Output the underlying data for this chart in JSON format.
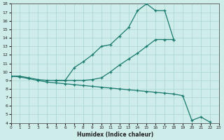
{
  "xlabel": "Humidex (Indice chaleur)",
  "bg_color": "#ceecea",
  "grid_color": "#aed8d4",
  "line_color": "#1a7a6e",
  "xlim": [
    0,
    23
  ],
  "ylim": [
    4,
    18
  ],
  "xticks": [
    0,
    1,
    2,
    3,
    4,
    5,
    6,
    7,
    8,
    9,
    10,
    11,
    12,
    13,
    14,
    15,
    16,
    17,
    18,
    19,
    20,
    21,
    22,
    23
  ],
  "yticks": [
    4,
    5,
    6,
    7,
    8,
    9,
    10,
    11,
    12,
    13,
    14,
    15,
    16,
    17,
    18
  ],
  "line1_x": [
    0,
    1,
    2,
    3,
    4,
    5,
    6,
    7,
    8,
    9,
    10,
    11,
    12,
    13,
    14,
    15,
    16,
    17,
    18
  ],
  "line1_y": [
    9.5,
    9.5,
    9.3,
    9.1,
    9.0,
    9.0,
    9.0,
    10.5,
    11.2,
    12.0,
    13.0,
    13.2,
    14.2,
    15.2,
    17.2,
    18.0,
    17.2,
    17.2,
    13.8
  ],
  "line2_x": [
    0,
    1,
    2,
    3,
    4,
    5,
    6,
    7,
    8,
    9,
    10,
    11,
    12,
    13,
    14,
    15,
    16,
    17,
    18,
    19,
    20,
    21,
    22
  ],
  "line2_y": [
    9.5,
    9.4,
    9.2,
    9.0,
    8.8,
    8.7,
    8.6,
    8.5,
    8.4,
    8.3,
    8.2,
    8.1,
    8.0,
    7.9,
    7.8,
    7.7,
    7.6,
    7.5,
    7.4,
    7.2,
    4.3,
    4.7,
    4.1
  ],
  "line3_x": [
    5,
    6,
    7,
    8,
    9,
    10,
    11,
    12,
    13,
    14,
    15,
    16,
    17,
    18
  ],
  "line3_y": [
    9.0,
    9.0,
    9.0,
    9.0,
    9.1,
    9.3,
    10.0,
    10.8,
    11.5,
    12.2,
    13.0,
    13.8,
    13.8,
    13.8
  ]
}
